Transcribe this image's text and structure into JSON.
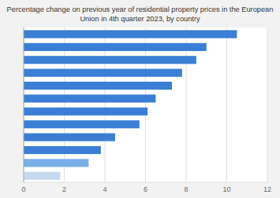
{
  "chart_data": {
    "type": "bar",
    "orientation": "horizontal",
    "title": "Percentage change on previous year of residential property prices in the European\nUnion in 4th quarter 2023, by country",
    "categories": [
      null,
      null,
      null,
      null,
      null,
      null,
      null,
      null,
      null,
      null,
      null,
      null
    ],
    "values": [
      10.5,
      9.0,
      8.5,
      7.8,
      7.3,
      6.5,
      6.1,
      5.7,
      4.5,
      3.8,
      3.2,
      1.8
    ],
    "colors": [
      "#3a7fd5",
      "#3a7fd5",
      "#3a7fd5",
      "#3a7fd5",
      "#3a7fd5",
      "#3a7fd5",
      "#3a7fd5",
      "#3a7fd5",
      "#3a7fd5",
      "#3a7fd5",
      "#7ab0e8",
      "#c5d9f0"
    ],
    "xlim": [
      0,
      12
    ],
    "xticks": [
      0,
      2,
      4,
      6,
      8,
      10,
      12
    ],
    "grid": true
  }
}
